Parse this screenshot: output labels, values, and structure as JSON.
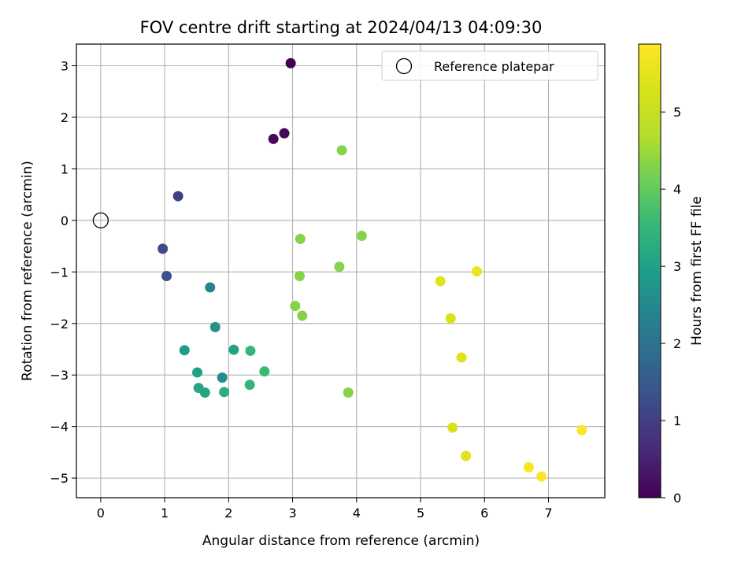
{
  "chart_data": {
    "type": "scatter",
    "title": "FOV centre drift starting at 2024/04/13 04:09:30",
    "xlabel": "Angular distance from reference (arcmin)",
    "ylabel": "Rotation from reference (arcmin)",
    "xlim": [
      -0.38,
      7.88
    ],
    "ylim": [
      -5.38,
      3.42
    ],
    "x_ticks": [
      0,
      1,
      2,
      3,
      4,
      5,
      6,
      7
    ],
    "y_ticks": [
      -5,
      -4,
      -3,
      -2,
      -1,
      0,
      1,
      2,
      3
    ],
    "grid": true,
    "legend": {
      "position": "top-right",
      "entries": [
        "Reference platepar"
      ]
    },
    "reference_point": {
      "x": 0,
      "y": 0,
      "name": "Reference platepar"
    },
    "colorbar": {
      "label": "Hours from first FF file",
      "colormap": "viridis",
      "range": [
        0,
        5.88
      ],
      "ticks": [
        0,
        1,
        2,
        3,
        4,
        5
      ]
    },
    "points": [
      {
        "x": 2.97,
        "y": 3.05,
        "c": 0.0
      },
      {
        "x": 2.87,
        "y": 1.69,
        "c": 0.1
      },
      {
        "x": 2.7,
        "y": 1.58,
        "c": 0.1
      },
      {
        "x": 1.21,
        "y": 0.47,
        "c": 1.0
      },
      {
        "x": 0.97,
        "y": -0.55,
        "c": 1.2
      },
      {
        "x": 1.03,
        "y": -1.08,
        "c": 1.3
      },
      {
        "x": 1.71,
        "y": -1.3,
        "c": 2.4
      },
      {
        "x": 1.79,
        "y": -2.07,
        "c": 2.7
      },
      {
        "x": 1.31,
        "y": -2.52,
        "c": 2.9
      },
      {
        "x": 1.51,
        "y": -2.95,
        "c": 3.0
      },
      {
        "x": 1.9,
        "y": -3.05,
        "c": 2.6
      },
      {
        "x": 2.08,
        "y": -2.51,
        "c": 3.0
      },
      {
        "x": 1.53,
        "y": -3.25,
        "c": 3.1
      },
      {
        "x": 1.63,
        "y": -3.34,
        "c": 3.1
      },
      {
        "x": 1.93,
        "y": -3.33,
        "c": 3.3
      },
      {
        "x": 2.34,
        "y": -2.53,
        "c": 3.5
      },
      {
        "x": 2.33,
        "y": -3.19,
        "c": 3.5
      },
      {
        "x": 2.56,
        "y": -2.93,
        "c": 3.6
      },
      {
        "x": 3.04,
        "y": -1.66,
        "c": 4.3
      },
      {
        "x": 3.15,
        "y": -1.85,
        "c": 4.3
      },
      {
        "x": 3.11,
        "y": -1.08,
        "c": 4.3
      },
      {
        "x": 3.12,
        "y": -0.36,
        "c": 4.3
      },
      {
        "x": 3.73,
        "y": -0.9,
        "c": 4.3
      },
      {
        "x": 4.08,
        "y": -0.3,
        "c": 4.3
      },
      {
        "x": 3.77,
        "y": 1.36,
        "c": 4.3
      },
      {
        "x": 3.87,
        "y": -3.34,
        "c": 4.3
      },
      {
        "x": 5.31,
        "y": -1.18,
        "c": 5.4
      },
      {
        "x": 5.88,
        "y": -0.99,
        "c": 5.6
      },
      {
        "x": 5.47,
        "y": -1.9,
        "c": 5.3
      },
      {
        "x": 5.64,
        "y": -2.66,
        "c": 5.4
      },
      {
        "x": 5.5,
        "y": -4.02,
        "c": 5.3
      },
      {
        "x": 5.71,
        "y": -4.57,
        "c": 5.4
      },
      {
        "x": 7.52,
        "y": -4.07,
        "c": 5.9
      },
      {
        "x": 6.69,
        "y": -4.79,
        "c": 5.8
      },
      {
        "x": 6.89,
        "y": -4.97,
        "c": 5.8
      }
    ]
  }
}
